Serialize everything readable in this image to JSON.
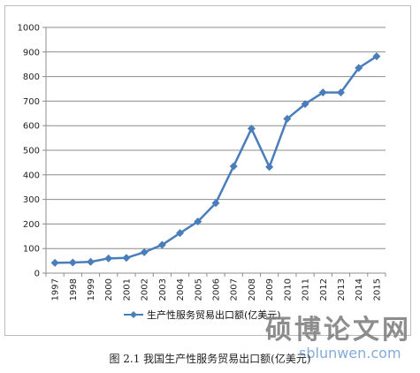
{
  "caption": "图 2.1 我国生产性服务贸易出口额(亿美元)",
  "watermark": {
    "text": "硕博论文网",
    "url": "sblunwen.com"
  },
  "colors": {
    "series": "#4A7EBB",
    "grid": "#8c8c8c",
    "axis": "#8c8c8c"
  },
  "chart_data": {
    "type": "line",
    "title": "",
    "xlabel": "",
    "ylabel": "",
    "ylim": [
      0,
      1000
    ],
    "yticks": [
      0,
      100,
      200,
      300,
      400,
      500,
      600,
      700,
      800,
      900,
      1000
    ],
    "grid": true,
    "legend_position": "bottom",
    "categories": [
      "1997",
      "1998",
      "1999",
      "2000",
      "2001",
      "2002",
      "2003",
      "2004",
      "2005",
      "2006",
      "2007",
      "2008",
      "2009",
      "2010",
      "2011",
      "2012",
      "2013",
      "2014",
      "2015"
    ],
    "series": [
      {
        "name": "生产性服务贸易出口额(亿美元)",
        "values": [
          42,
          43,
          46,
          60,
          62,
          85,
          115,
          163,
          210,
          285,
          435,
          588,
          432,
          628,
          688,
          735,
          735,
          835,
          882
        ],
        "marker": "diamond",
        "color": "#4A7EBB"
      }
    ]
  }
}
